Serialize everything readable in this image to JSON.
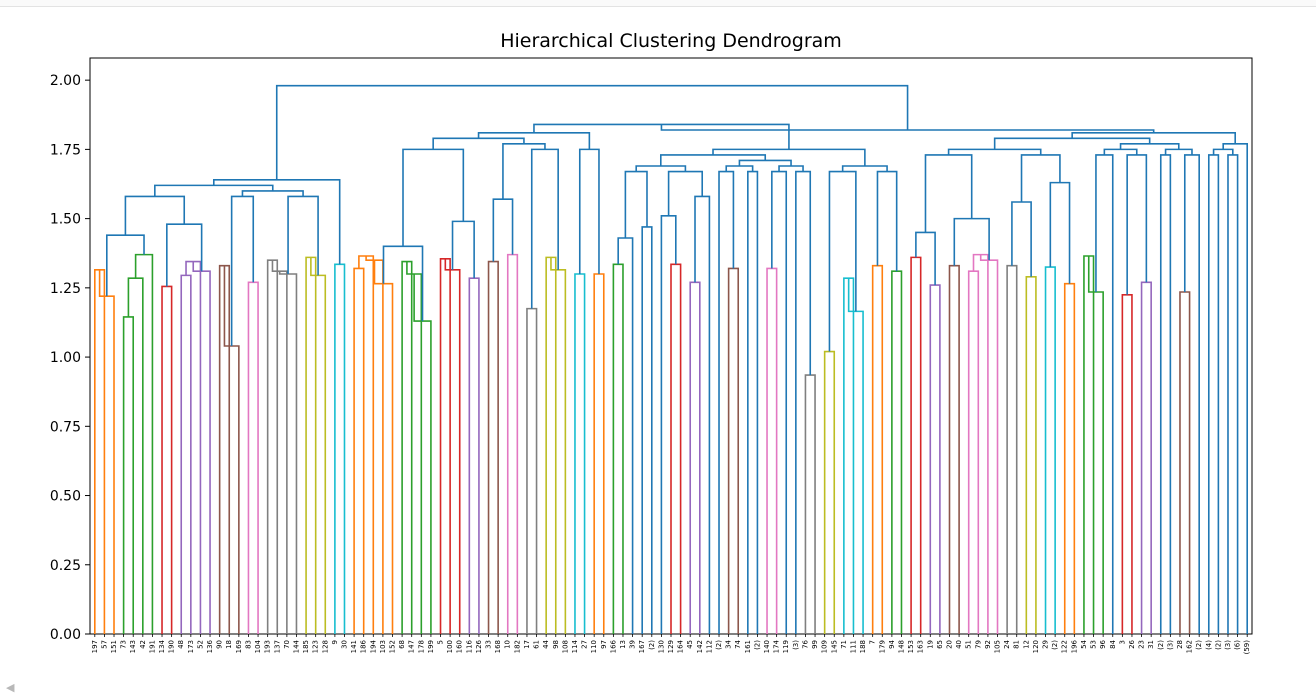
{
  "chart_data": {
    "type": "dendrogram",
    "title": "Hierarchical Clustering Dendrogram",
    "xlabel": "",
    "ylabel": "",
    "ylim": [
      0,
      2.08
    ],
    "yticks": [
      "0.00",
      "0.25",
      "0.50",
      "0.75",
      "1.00",
      "1.25",
      "1.50",
      "1.75",
      "2.00"
    ],
    "ytick_values": [
      0,
      0.25,
      0.5,
      0.75,
      1.0,
      1.25,
      1.5,
      1.75,
      2.0
    ],
    "grid": false,
    "above_threshold_color": "#1f77b4",
    "palette": {
      "orange": "#ff7f0e",
      "green": "#2ca02c",
      "red": "#d62728",
      "purple": "#9467bd",
      "brown": "#8c564b",
      "pink": "#e377c2",
      "gray": "#7f7f7f",
      "olive": "#bcbd22",
      "cyan": "#17becf"
    },
    "leaves": [
      "197",
      "57",
      "151",
      "73",
      "143",
      "42",
      "191",
      "134",
      "190",
      "48",
      "173",
      "52",
      "136",
      "90",
      "18",
      "169",
      "83",
      "104",
      "193",
      "137",
      "70",
      "144",
      "185",
      "123",
      "128",
      "9",
      "30",
      "141",
      "186",
      "194",
      "103",
      "152",
      "68",
      "147",
      "178",
      "199",
      "5",
      "100",
      "160",
      "116",
      "126",
      "33",
      "168",
      "10",
      "182",
      "17",
      "61",
      "44",
      "98",
      "108",
      "114",
      "27",
      "110",
      "97",
      "166",
      "13",
      "39",
      "167",
      "(2)",
      "130",
      "129",
      "164",
      "45",
      "142",
      "112",
      "(2)",
      "34",
      "74",
      "161",
      "(2)",
      "140",
      "174",
      "119",
      "(3)",
      "76",
      "99",
      "109",
      "145",
      "71",
      "111",
      "188",
      "7",
      "179",
      "94",
      "148",
      "153",
      "163",
      "19",
      "65",
      "20",
      "40",
      "51",
      "79",
      "92",
      "105",
      "24",
      "81",
      "12",
      "120",
      "29",
      "(2)",
      "122",
      "196",
      "54",
      "53",
      "96",
      "84",
      "3",
      "26",
      "23",
      "31",
      "(2)",
      "(3)",
      "28",
      "162",
      "(2)",
      "(4)",
      "(2)",
      "(3)",
      "(6)",
      "(59)"
    ],
    "merges": [
      [
        0,
        1,
        1.315,
        "orange"
      ],
      [
        1,
        2,
        1.22,
        "orange"
      ],
      [
        3,
        4,
        1.145,
        "green"
      ],
      [
        4,
        5,
        1.285,
        "green"
      ],
      [
        5,
        6,
        1.37,
        "green"
      ],
      [
        7,
        8,
        1.255,
        "red"
      ],
      [
        9,
        10,
        1.295,
        "purple"
      ],
      [
        10,
        11,
        1.345,
        "purple"
      ],
      [
        11,
        12,
        1.31,
        "purple"
      ],
      [
        13,
        14,
        1.33,
        "brown"
      ],
      [
        14,
        15,
        1.04,
        "brown"
      ],
      [
        16,
        17,
        1.27,
        "pink"
      ],
      [
        18,
        19,
        1.35,
        "gray"
      ],
      [
        19,
        20,
        1.31,
        "gray"
      ],
      [
        20,
        21,
        1.3,
        "gray"
      ],
      [
        22,
        23,
        1.36,
        "olive"
      ],
      [
        23,
        24,
        1.295,
        "olive"
      ],
      [
        25,
        26,
        1.335,
        "cyan"
      ],
      [
        27,
        28,
        1.32,
        "orange"
      ],
      [
        28,
        29,
        1.365,
        "orange"
      ],
      [
        29,
        30,
        1.35,
        "orange"
      ],
      [
        30,
        31,
        1.265,
        "orange"
      ],
      [
        32,
        33,
        1.345,
        "green"
      ],
      [
        33,
        34,
        1.3,
        "green"
      ],
      [
        34,
        35,
        1.13,
        "green"
      ],
      [
        36,
        37,
        1.355,
        "red"
      ],
      [
        37,
        38,
        1.315,
        "red"
      ],
      [
        39,
        40,
        1.285,
        "purple"
      ],
      [
        41,
        42,
        1.345,
        "brown"
      ],
      [
        43,
        44,
        1.37,
        "pink"
      ],
      [
        45,
        46,
        1.175,
        "gray"
      ],
      [
        47,
        48,
        1.36,
        "olive"
      ],
      [
        48,
        49,
        1.315,
        "olive"
      ],
      [
        50,
        51,
        1.3,
        "cyan"
      ],
      [
        52,
        53,
        1.3,
        "orange"
      ],
      [
        54,
        55,
        1.335,
        "green"
      ],
      [
        60,
        61,
        1.335,
        "red"
      ],
      [
        62,
        63,
        1.27,
        "purple"
      ],
      [
        66,
        67,
        1.32,
        "brown"
      ],
      [
        70,
        71,
        1.32,
        "pink"
      ],
      [
        74,
        75,
        0.935,
        "gray"
      ],
      [
        76,
        77,
        1.02,
        "olive"
      ],
      [
        78,
        79,
        1.285,
        "cyan"
      ],
      [
        79,
        80,
        1.165,
        "cyan"
      ],
      [
        81,
        82,
        1.33,
        "orange"
      ],
      [
        83,
        84,
        1.31,
        "green"
      ],
      [
        85,
        86,
        1.36,
        "red"
      ],
      [
        87,
        88,
        1.26,
        "purple"
      ],
      [
        89,
        90,
        1.33,
        "brown"
      ],
      [
        91,
        92,
        1.31,
        "pink"
      ],
      [
        92,
        93,
        1.37,
        "pink"
      ],
      [
        93,
        94,
        1.35,
        "pink"
      ],
      [
        95,
        96,
        1.33,
        "gray"
      ],
      [
        97,
        98,
        1.29,
        "olive"
      ],
      [
        99,
        100,
        1.325,
        "cyan"
      ],
      [
        101,
        102,
        1.265,
        "orange"
      ],
      [
        103,
        104,
        1.365,
        "green"
      ],
      [
        104,
        105,
        1.235,
        "green"
      ],
      [
        107,
        108,
        1.225,
        "red"
      ],
      [
        109,
        110,
        1.27,
        "purple"
      ],
      [
        113,
        114,
        1.235,
        "brown"
      ]
    ]
  },
  "ui": {
    "scroll_left_glyph": "◀"
  }
}
